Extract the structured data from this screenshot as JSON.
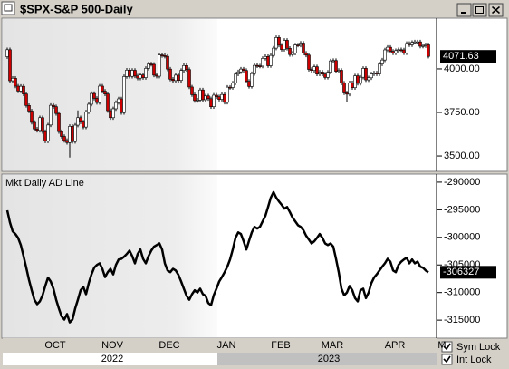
{
  "window": {
    "title": "$SPX-S&P 500-Daily",
    "sym_lock": "Sym Lock",
    "int_lock": "Int Lock",
    "years": [
      "2022",
      "2023"
    ]
  },
  "chart_data": [
    {
      "type": "candlestick",
      "open": [
        4070,
        4110,
        3932,
        3946,
        3901,
        3873,
        3900,
        3856,
        3790,
        3758,
        3693,
        3655,
        3647,
        3720,
        3640,
        3586,
        3678,
        3791,
        3783,
        3744,
        3640,
        3612,
        3589,
        3577,
        3670,
        3583,
        3677,
        3720,
        3695,
        3666,
        3753,
        3797,
        3859,
        3831,
        3807,
        3901,
        3872,
        3856,
        3760,
        3720,
        3771,
        3807,
        3828,
        3749,
        3956,
        3993,
        3957,
        3992,
        3959,
        3947,
        3965,
        3950,
        4003,
        4028,
        4026,
        3964,
        3958,
        4080,
        4076,
        4072,
        3999,
        3941,
        3933,
        3964,
        3934,
        3991,
        4019,
        3996,
        3896,
        3852,
        3818,
        3821,
        3879,
        3823,
        3845,
        3829,
        3783,
        3849,
        3840,
        3825,
        3853,
        3808,
        3895,
        3893,
        3919,
        3970,
        3983,
        3999,
        3991,
        3929,
        3899,
        3973,
        4020,
        4017,
        4016,
        4060,
        4071,
        4018,
        4077,
        4119,
        4180,
        4136,
        4111,
        4164,
        4118,
        4082,
        4090,
        4137,
        4136,
        4148,
        4090,
        4079,
        3997,
        3991,
        4012,
        3970,
        3982,
        3970,
        3951,
        3981,
        4046,
        4048,
        3986,
        3992,
        3918,
        3862,
        3855,
        3920,
        3892,
        3960,
        3917,
        3952,
        4003,
        3937,
        3949,
        3971,
        3977,
        3971,
        4028,
        4051,
        4109,
        4124,
        4101,
        4091,
        4105,
        4110,
        4109,
        4092,
        4146,
        4138,
        4152,
        4155,
        4155,
        4130,
        4133,
        4138
      ],
      "high": [
        4122,
        4122,
        3958,
        3958,
        3913,
        3912,
        3912,
        3868,
        3802,
        3770,
        3705,
        3667,
        3732,
        3732,
        3652,
        3690,
        3803,
        3803,
        3795,
        3756,
        3652,
        3624,
        3601,
        3682,
        3682,
        3689,
        3762,
        3732,
        3707,
        3765,
        3809,
        3871,
        3871,
        3843,
        3913,
        3913,
        3884,
        3868,
        3772,
        3783,
        3819,
        3840,
        3840,
        3968,
        4005,
        4005,
        4004,
        4004,
        3971,
        3977,
        3977,
        4015,
        4040,
        4040,
        4038,
        3976,
        4092,
        4092,
        4088,
        4084,
        4011,
        3953,
        3976,
        3976,
        4003,
        4031,
        4031,
        4008,
        3908,
        3864,
        3833,
        3891,
        3891,
        3857,
        3857,
        3841,
        3861,
        3861,
        3852,
        3865,
        3865,
        3907,
        3907,
        3931,
        3982,
        3995,
        4011,
        4011,
        4003,
        3941,
        3985,
        4032,
        4032,
        4029,
        4072,
        4083,
        4083,
        4089,
        4131,
        4192,
        4192,
        4148,
        4176,
        4176,
        4130,
        4102,
        4149,
        4149,
        4160,
        4160,
        4102,
        4091,
        4009,
        4024,
        4024,
        3994,
        3994,
        3982,
        3993,
        4058,
        4060,
        4060,
        4004,
        4004,
        3930,
        3874,
        3932,
        3932,
        3972,
        3972,
        3964,
        4015,
        4015,
        3961,
        3983,
        3989,
        3989,
        4040,
        4063,
        4121,
        4136,
        4136,
        4113,
        4117,
        4122,
        4122,
        4121,
        4158,
        4158,
        4164,
        4167,
        4167,
        4167,
        4145,
        4150,
        4150
      ],
      "low": [
        4058,
        3920,
        3920,
        3889,
        3861,
        3861,
        3844,
        3778,
        3746,
        3681,
        3643,
        3635,
        3635,
        3628,
        3574,
        3574,
        3666,
        3771,
        3732,
        3628,
        3600,
        3577,
        3565,
        3491,
        3571,
        3571,
        3665,
        3683,
        3654,
        3654,
        3741,
        3785,
        3819,
        3795,
        3795,
        3860,
        3844,
        3748,
        3708,
        3708,
        3759,
        3795,
        3737,
        3737,
        3944,
        3945,
        3945,
        3947,
        3935,
        3935,
        3938,
        3938,
        3991,
        4014,
        3952,
        3946,
        3946,
        4064,
        4060,
        3987,
        3929,
        3921,
        3921,
        3922,
        3922,
        3979,
        3984,
        3884,
        3840,
        3806,
        3806,
        3809,
        3811,
        3811,
        3817,
        3771,
        3771,
        3828,
        3813,
        3813,
        3796,
        3796,
        3881,
        3881,
        3907,
        3958,
        3971,
        3979,
        3917,
        3887,
        3887,
        3961,
        4005,
        4004,
        4004,
        4048,
        4006,
        4006,
        4065,
        4107,
        4124,
        4099,
        4099,
        4106,
        4070,
        4070,
        4078,
        4124,
        4124,
        4078,
        4067,
        3985,
        3979,
        3979,
        3958,
        3958,
        3958,
        3939,
        3939,
        3969,
        4034,
        3974,
        3974,
        3906,
        3850,
        3808,
        3843,
        3880,
        3880,
        3905,
        3905,
        3940,
        3925,
        3925,
        3937,
        3959,
        3959,
        3959,
        4016,
        4039,
        4097,
        4089,
        4079,
        4079,
        4093,
        4097,
        4080,
        4080,
        4126,
        4126,
        4140,
        4143,
        4118,
        4118,
        4121,
        4060
      ],
      "close": [
        4110,
        3932,
        3946,
        3901,
        3873,
        3900,
        3856,
        3790,
        3758,
        3693,
        3655,
        3647,
        3720,
        3640,
        3586,
        3678,
        3791,
        3783,
        3744,
        3640,
        3612,
        3589,
        3577,
        3670,
        3583,
        3677,
        3720,
        3695,
        3666,
        3753,
        3797,
        3859,
        3831,
        3807,
        3901,
        3872,
        3856,
        3760,
        3720,
        3771,
        3807,
        3828,
        3749,
        3956,
        3993,
        3957,
        3992,
        3959,
        3947,
        3965,
        3950,
        4003,
        4028,
        4026,
        3964,
        3958,
        4080,
        4076,
        4072,
        3999,
        3941,
        3933,
        3964,
        3934,
        3991,
        4019,
        3996,
        3896,
        3852,
        3818,
        3821,
        3879,
        3823,
        3845,
        3829,
        3783,
        3849,
        3840,
        3825,
        3853,
        3808,
        3895,
        3893,
        3919,
        3970,
        3983,
        3999,
        3991,
        3929,
        3899,
        3973,
        4020,
        4017,
        4016,
        4060,
        4071,
        4018,
        4077,
        4119,
        4180,
        4136,
        4111,
        4164,
        4118,
        4082,
        4090,
        4137,
        4136,
        4148,
        4090,
        4079,
        3997,
        3991,
        4012,
        3970,
        3982,
        3970,
        3951,
        3981,
        4046,
        4048,
        3986,
        3992,
        3918,
        3862,
        3855,
        3920,
        3892,
        3960,
        3917,
        3952,
        4003,
        3937,
        3949,
        3971,
        3977,
        3971,
        4028,
        4051,
        4109,
        4124,
        4101,
        4091,
        4105,
        4110,
        4109,
        4092,
        4146,
        4138,
        4152,
        4155,
        4155,
        4130,
        4133,
        4138,
        4071.63
      ],
      "up_color": "#ffffff",
      "down_color": "#cc0000",
      "ylim": [
        3417,
        4286
      ],
      "yticks": [
        {
          "value": 4000,
          "label": "4000.00"
        },
        {
          "value": 3750,
          "label": "3750.00"
        },
        {
          "value": 3500,
          "label": "3500.00"
        }
      ]
    },
    {
      "type": "line",
      "title": "Mkt Daily AD Line",
      "color": "#000000",
      "categories": [
        null,
        null,
        null,
        null,
        null,
        null,
        null,
        null,
        null,
        null,
        null,
        null,
        null,
        null,
        null,
        "OCT",
        null,
        null,
        null,
        null,
        null,
        null,
        null,
        null,
        null,
        null,
        null,
        null,
        null,
        null,
        null,
        null,
        null,
        null,
        null,
        null,
        "NOV",
        null,
        null,
        null,
        null,
        null,
        null,
        null,
        null,
        null,
        null,
        null,
        null,
        null,
        null,
        null,
        null,
        null,
        null,
        null,
        null,
        "DEC",
        null,
        null,
        null,
        null,
        null,
        null,
        null,
        null,
        null,
        null,
        null,
        null,
        null,
        null,
        null,
        null,
        null,
        null,
        null,
        null,
        "JAN",
        null,
        null,
        null,
        null,
        null,
        null,
        null,
        null,
        null,
        null,
        null,
        null,
        null,
        null,
        null,
        null,
        null,
        null,
        null,
        "FEB",
        null,
        null,
        null,
        null,
        null,
        null,
        null,
        null,
        null,
        null,
        null,
        null,
        null,
        null,
        null,
        null,
        null,
        null,
        "MAR",
        null,
        null,
        null,
        null,
        null,
        null,
        null,
        null,
        null,
        null,
        null,
        null,
        null,
        null,
        null,
        null,
        null,
        null,
        null,
        null,
        null,
        null,
        "APR",
        null,
        null,
        null,
        null,
        null,
        null,
        null,
        null,
        null,
        null,
        null,
        null,
        null,
        null,
        null
      ],
      "x_overflow_label": "M",
      "values": [
        -295100,
        -297300,
        -298900,
        -299400,
        -300100,
        -301400,
        -303400,
        -305500,
        -307700,
        -309600,
        -311300,
        -312100,
        -311600,
        -310500,
        -308800,
        -307300,
        -308000,
        -309300,
        -311300,
        -312900,
        -314300,
        -314900,
        -313900,
        -315400,
        -314900,
        -312900,
        -311300,
        -309600,
        -309000,
        -310300,
        -308300,
        -306700,
        -305500,
        -305000,
        -304700,
        -305700,
        -307200,
        -306300,
        -305700,
        -306700,
        -305000,
        -304000,
        -303900,
        -303500,
        -303000,
        -302400,
        -303400,
        -304700,
        -303000,
        -302200,
        -303900,
        -304700,
        -303400,
        -302400,
        -301700,
        -301400,
        -301100,
        -302200,
        -304700,
        -306000,
        -306300,
        -305700,
        -306000,
        -306800,
        -308000,
        -309300,
        -310600,
        -311300,
        -310300,
        -309600,
        -310000,
        -309300,
        -310300,
        -310600,
        -311900,
        -312300,
        -310500,
        -309300,
        -308000,
        -307200,
        -306300,
        -305300,
        -304000,
        -302200,
        -300100,
        -299100,
        -299400,
        -300700,
        -302200,
        -300600,
        -299100,
        -298100,
        -298400,
        -298100,
        -297100,
        -296100,
        -294500,
        -292800,
        -291800,
        -292800,
        -293500,
        -294100,
        -294800,
        -294500,
        -295400,
        -296400,
        -297100,
        -297800,
        -298100,
        -298700,
        -299700,
        -300400,
        -301100,
        -300700,
        -300100,
        -299400,
        -300100,
        -301100,
        -301400,
        -301100,
        -301700,
        -303900,
        -306300,
        -309300,
        -310500,
        -310000,
        -308800,
        -309600,
        -311000,
        -311600,
        -309600,
        -309300,
        -311000,
        -310000,
        -308300,
        -307300,
        -306700,
        -306000,
        -305300,
        -304700,
        -303900,
        -304400,
        -306000,
        -306300,
        -305000,
        -304400,
        -304000,
        -303700,
        -304700,
        -304000,
        -304700,
        -304400,
        -305300,
        -305500,
        -306000,
        -306327
      ],
      "ylim": [
        -318100,
        -288700
      ],
      "yticks": [
        -290000,
        -295000,
        -300000,
        -305000,
        -310000,
        -315000
      ]
    }
  ]
}
